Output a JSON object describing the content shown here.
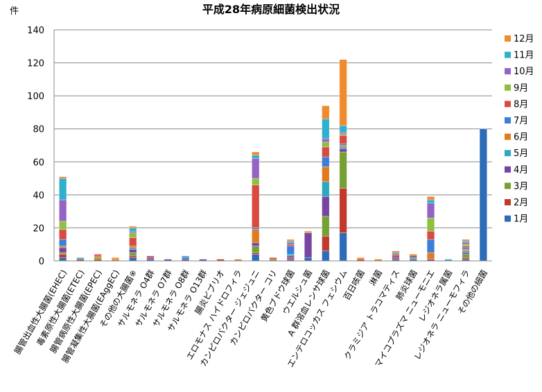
{
  "chart_data": {
    "type": "bar",
    "stacked": true,
    "title": "平成28年病原細菌検出状況",
    "ylabel": "件",
    "xlabel": "",
    "ylim": [
      0,
      140
    ],
    "yticks": [
      0,
      20,
      40,
      60,
      80,
      100,
      120,
      140
    ],
    "grid": true,
    "legend_position": "right",
    "categories": [
      "腸管出血性大腸菌(EHEC)",
      "毒素原性大腸菌(ETEC)",
      "腸管病原性大腸菌(EPEC)",
      "腸管凝集性大腸菌(EAggEC)",
      "その他の大腸菌※",
      "サルモネラ O4群",
      "サルモネラ O7群",
      "サルモネラ O8群",
      "サルモネラ O13群",
      "腸炎ビブリオ",
      "エロモナス ハイドロフィラ",
      "カンピロバクター ジェジュニ",
      "カンピロバクター コリ",
      "黄色ブドウ球菌",
      "ウエルシュ菌",
      "A 群溶血レンサ球菌",
      "エンテロコッカス フェシウム",
      "百日咳菌",
      "淋菌",
      "クラミジア トラコマティス",
      "肺炎球菌",
      "マイコプラズマ ニューモニエ",
      "レジオネラ属菌",
      "レジオネラ ニューモフィラ",
      "その他の細菌"
    ],
    "series": [
      {
        "name": "1月",
        "color": "#2e6bb8",
        "values": [
          2,
          0,
          0,
          0,
          2,
          1,
          0,
          1,
          0,
          0,
          0,
          4,
          0,
          1,
          2,
          6,
          17,
          0,
          0,
          1,
          1,
          0,
          0,
          1,
          80
        ]
      },
      {
        "name": "2月",
        "color": "#c0392b",
        "values": [
          2,
          1,
          1,
          0,
          1,
          0,
          0,
          0,
          0,
          1,
          0,
          1,
          0,
          1,
          0,
          9,
          27,
          1,
          0,
          1,
          0,
          0,
          0,
          1,
          0
        ]
      },
      {
        "name": "3月",
        "color": "#77a033",
        "values": [
          1,
          0,
          1,
          0,
          2,
          0,
          0,
          0,
          0,
          0,
          0,
          4,
          1,
          0,
          0,
          12,
          22,
          0,
          0,
          0,
          1,
          0,
          0,
          2,
          0
        ]
      },
      {
        "name": "4月",
        "color": "#7546a1",
        "values": [
          3,
          0,
          0,
          0,
          2,
          1,
          1,
          1,
          1,
          0,
          0,
          2,
          0,
          1,
          15,
          12,
          2,
          0,
          0,
          1,
          1,
          1,
          0,
          1,
          0
        ]
      },
      {
        "name": "5月",
        "color": "#2da8bd",
        "values": [
          0,
          0,
          0,
          0,
          1,
          0,
          0,
          0,
          0,
          0,
          0,
          0,
          0,
          1,
          0,
          9,
          1,
          0,
          0,
          0,
          0,
          0,
          0,
          1,
          0
        ]
      },
      {
        "name": "6月",
        "color": "#e07b1f",
        "values": [
          1,
          0,
          1,
          1,
          1,
          0,
          0,
          0,
          0,
          0,
          1,
          8,
          0,
          0,
          0,
          9,
          1,
          0,
          1,
          0,
          1,
          4,
          0,
          1,
          0
        ]
      },
      {
        "name": "7月",
        "color": "#3b7dd8",
        "values": [
          4,
          0,
          0,
          0,
          0,
          0,
          0,
          0,
          0,
          0,
          0,
          1,
          0,
          5,
          0,
          6,
          1,
          0,
          0,
          0,
          0,
          8,
          0,
          1,
          0
        ]
      },
      {
        "name": "8月",
        "color": "#d94a41",
        "values": [
          6,
          0,
          1,
          0,
          5,
          1,
          0,
          0,
          0,
          0,
          0,
          26,
          1,
          1,
          0,
          6,
          5,
          0,
          0,
          1,
          0,
          5,
          0,
          1,
          0
        ]
      },
      {
        "name": "9月",
        "color": "#8fbf3f",
        "values": [
          5,
          0,
          0,
          0,
          3,
          0,
          0,
          0,
          0,
          0,
          0,
          4,
          0,
          0,
          0,
          3,
          1,
          0,
          0,
          0,
          0,
          8,
          0,
          1,
          0
        ]
      },
      {
        "name": "10月",
        "color": "#9464c4",
        "values": [
          13,
          0,
          0,
          0,
          1,
          0,
          0,
          0,
          0,
          0,
          0,
          12,
          0,
          1,
          0,
          2,
          1,
          0,
          0,
          0,
          0,
          9,
          0,
          1,
          0
        ]
      },
      {
        "name": "11月",
        "color": "#2fb0cc",
        "values": [
          13,
          1,
          0,
          0,
          2,
          0,
          0,
          1,
          0,
          0,
          0,
          2,
          0,
          1,
          0,
          12,
          4,
          0,
          0,
          1,
          0,
          2,
          1,
          1,
          0
        ]
      },
      {
        "name": "12月",
        "color": "#f08a2e",
        "values": [
          1,
          0,
          0,
          1,
          1,
          0,
          0,
          0,
          0,
          0,
          0,
          2,
          0,
          1,
          1,
          8,
          40,
          1,
          0,
          1,
          0,
          2,
          0,
          1,
          0
        ]
      }
    ]
  }
}
